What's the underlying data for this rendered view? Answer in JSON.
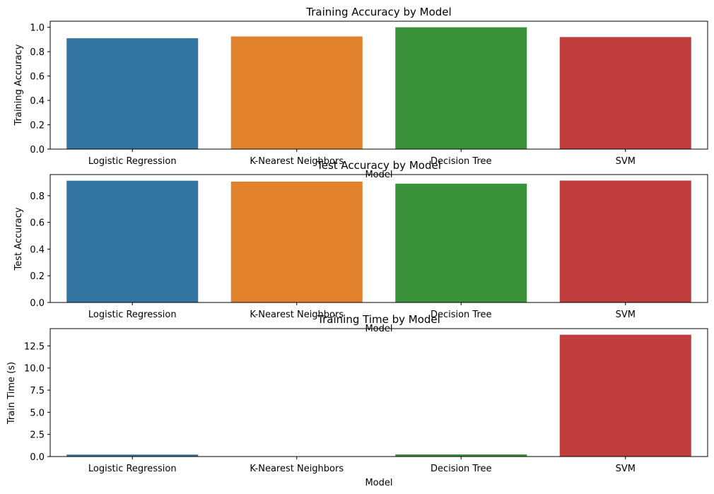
{
  "chart_data": [
    {
      "type": "bar",
      "title": "Training Accuracy by Model",
      "xlabel": "Model",
      "ylabel": "Training Accuracy",
      "categories": [
        "Logistic Regression",
        "K-Nearest Neighbors",
        "Decision Tree",
        "SVM"
      ],
      "values": [
        0.91,
        0.925,
        1.0,
        0.92
      ],
      "ylim": [
        0,
        1.05
      ],
      "yticks": [
        0.0,
        0.2,
        0.4,
        0.6,
        0.8,
        1.0
      ],
      "ytick_labels": [
        "0.0",
        "0.2",
        "0.4",
        "0.6",
        "0.8",
        "1.0"
      ],
      "colors": [
        "#3274a1",
        "#e1812c",
        "#3a923a",
        "#c03d3e"
      ],
      "grid": false,
      "legend": "none"
    },
    {
      "type": "bar",
      "title": "Test Accuracy by Model",
      "xlabel": "Model",
      "ylabel": "Test Accuracy",
      "categories": [
        "Logistic Regression",
        "K-Nearest Neighbors",
        "Decision Tree",
        "SVM"
      ],
      "values": [
        0.912,
        0.905,
        0.89,
        0.913
      ],
      "ylim": [
        0,
        0.958
      ],
      "yticks": [
        0.0,
        0.2,
        0.4,
        0.6,
        0.8
      ],
      "ytick_labels": [
        "0.0",
        "0.2",
        "0.4",
        "0.6",
        "0.8"
      ],
      "colors": [
        "#3274a1",
        "#e1812c",
        "#3a923a",
        "#c03d3e"
      ],
      "grid": false,
      "legend": "none"
    },
    {
      "type": "bar",
      "title": "Training Time by Model",
      "xlabel": "Model",
      "ylabel": "Train Time (s)",
      "categories": [
        "Logistic Regression",
        "K-Nearest Neighbors",
        "Decision Tree",
        "SVM"
      ],
      "values": [
        0.22,
        0.03,
        0.24,
        13.76
      ],
      "ylim": [
        0,
        14.45
      ],
      "yticks": [
        0.0,
        2.5,
        5.0,
        7.5,
        10.0,
        12.5
      ],
      "ytick_labels": [
        "0.0",
        "2.5",
        "5.0",
        "7.5",
        "10.0",
        "12.5"
      ],
      "colors": [
        "#3274a1",
        "#e1812c",
        "#3a923a",
        "#c03d3e"
      ],
      "grid": false,
      "legend": "none"
    }
  ]
}
